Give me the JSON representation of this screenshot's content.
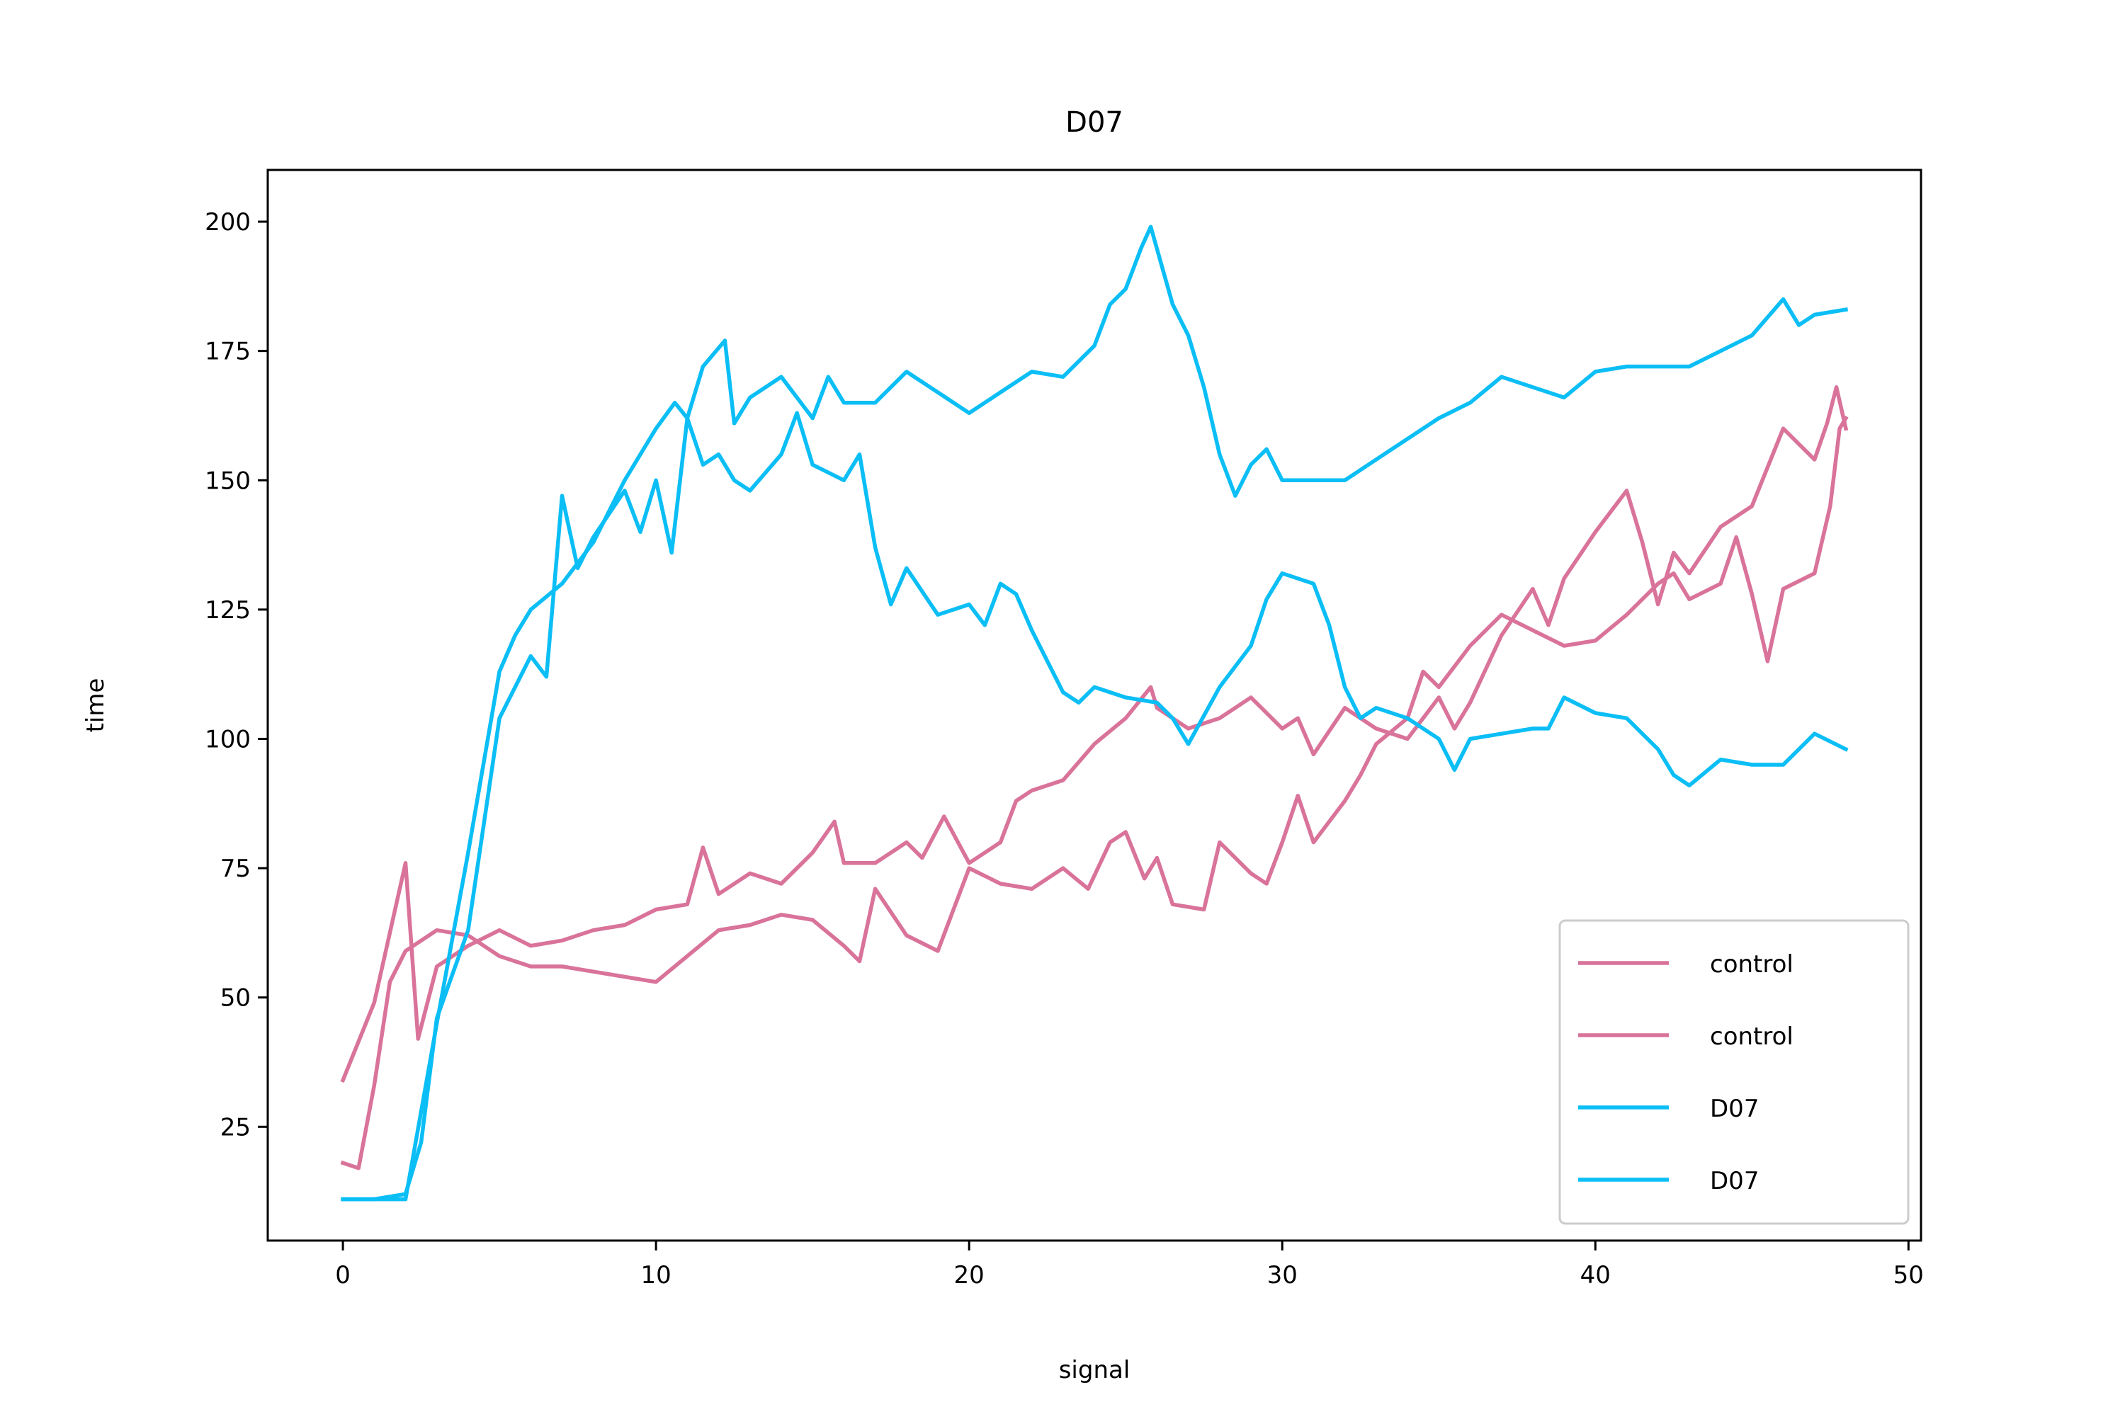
{
  "chart_data": {
    "type": "line",
    "title": "D07",
    "xlabel": "signal",
    "ylabel": "time",
    "xlim": [
      -2.4,
      50.4
    ],
    "ylim": [
      3.0,
      210.0
    ],
    "xticks": [
      0,
      10,
      20,
      30,
      40,
      50
    ],
    "yticks": [
      25,
      50,
      75,
      100,
      125,
      150,
      175,
      200
    ],
    "grid": false,
    "legend_position": "lower right",
    "series": [
      {
        "name": "control",
        "color": "#d9739a",
        "points": [
          [
            0,
            34
          ],
          [
            1,
            49
          ],
          [
            2,
            76
          ],
          [
            2.4,
            42
          ],
          [
            3,
            56
          ],
          [
            4,
            60
          ],
          [
            5,
            63
          ],
          [
            6,
            60
          ],
          [
            7,
            61
          ],
          [
            8,
            63
          ],
          [
            9,
            64
          ],
          [
            10,
            67
          ],
          [
            11,
            68
          ],
          [
            11.5,
            79
          ],
          [
            12,
            70
          ],
          [
            13,
            74
          ],
          [
            14,
            72
          ],
          [
            15,
            78
          ],
          [
            15.7,
            84
          ],
          [
            16,
            76
          ],
          [
            17,
            76
          ],
          [
            18,
            80
          ],
          [
            18.5,
            77
          ],
          [
            19.2,
            85
          ],
          [
            20,
            76
          ],
          [
            21,
            80
          ],
          [
            21.5,
            88
          ],
          [
            22,
            90
          ],
          [
            23,
            92
          ],
          [
            24,
            99
          ],
          [
            25,
            104
          ],
          [
            25.8,
            110
          ],
          [
            26,
            106
          ],
          [
            27,
            102
          ],
          [
            28,
            104
          ],
          [
            29,
            108
          ],
          [
            30,
            102
          ],
          [
            30.5,
            104
          ],
          [
            31,
            97
          ],
          [
            32,
            106
          ],
          [
            33,
            102
          ],
          [
            34,
            100
          ],
          [
            35,
            108
          ],
          [
            35.5,
            102
          ],
          [
            36,
            107
          ],
          [
            37,
            120
          ],
          [
            38,
            129
          ],
          [
            38.5,
            122
          ],
          [
            39,
            131
          ],
          [
            40,
            140
          ],
          [
            41,
            148
          ],
          [
            41.5,
            138
          ],
          [
            42,
            126
          ],
          [
            42.5,
            136
          ],
          [
            43,
            132
          ],
          [
            44,
            141
          ],
          [
            45,
            145
          ],
          [
            46,
            160
          ],
          [
            47,
            154
          ],
          [
            47.4,
            161
          ],
          [
            47.7,
            168
          ],
          [
            48,
            160
          ]
        ]
      },
      {
        "name": "control",
        "color": "#d9739a",
        "points": [
          [
            0,
            18
          ],
          [
            0.5,
            17
          ],
          [
            1,
            33
          ],
          [
            1.5,
            53
          ],
          [
            2,
            59
          ],
          [
            3,
            63
          ],
          [
            4,
            62
          ],
          [
            5,
            58
          ],
          [
            6,
            56
          ],
          [
            7,
            56
          ],
          [
            8,
            55
          ],
          [
            9,
            54
          ],
          [
            10,
            53
          ],
          [
            11,
            58
          ],
          [
            12,
            63
          ],
          [
            13,
            64
          ],
          [
            14,
            66
          ],
          [
            15,
            65
          ],
          [
            16,
            60
          ],
          [
            16.5,
            57
          ],
          [
            17,
            71
          ],
          [
            18,
            62
          ],
          [
            19,
            59
          ],
          [
            20,
            75
          ],
          [
            21,
            72
          ],
          [
            22,
            71
          ],
          [
            23,
            75
          ],
          [
            23.8,
            71
          ],
          [
            24.5,
            80
          ],
          [
            25,
            82
          ],
          [
            25.6,
            73
          ],
          [
            26,
            77
          ],
          [
            26.5,
            68
          ],
          [
            27.5,
            67
          ],
          [
            28,
            80
          ],
          [
            29,
            74
          ],
          [
            29.5,
            72
          ],
          [
            30,
            80
          ],
          [
            30.5,
            89
          ],
          [
            31,
            80
          ],
          [
            32,
            88
          ],
          [
            32.5,
            93
          ],
          [
            33,
            99
          ],
          [
            34,
            104
          ],
          [
            34.5,
            113
          ],
          [
            35,
            110
          ],
          [
            36,
            118
          ],
          [
            37,
            124
          ],
          [
            38,
            121
          ],
          [
            39,
            118
          ],
          [
            40,
            119
          ],
          [
            41,
            124
          ],
          [
            42,
            130
          ],
          [
            42.5,
            132
          ],
          [
            43,
            127
          ],
          [
            44,
            130
          ],
          [
            44.5,
            139
          ],
          [
            45,
            128
          ],
          [
            45.5,
            115
          ],
          [
            46,
            129
          ],
          [
            47,
            132
          ],
          [
            47.5,
            145
          ],
          [
            47.8,
            160
          ],
          [
            48,
            162
          ]
        ]
      },
      {
        "name": "D07",
        "color": "#0bbef5",
        "points": [
          [
            0,
            11
          ],
          [
            1,
            11
          ],
          [
            2,
            12
          ],
          [
            2.5,
            22
          ],
          [
            3,
            46
          ],
          [
            4,
            63
          ],
          [
            5,
            104
          ],
          [
            6,
            116
          ],
          [
            6.5,
            112
          ],
          [
            7,
            147
          ],
          [
            7.5,
            133
          ],
          [
            8,
            139
          ],
          [
            9,
            148
          ],
          [
            9.5,
            140
          ],
          [
            10,
            150
          ],
          [
            10.5,
            136
          ],
          [
            11,
            162
          ],
          [
            11.5,
            153
          ],
          [
            12,
            155
          ],
          [
            12.5,
            150
          ],
          [
            13,
            148
          ],
          [
            14,
            155
          ],
          [
            14.5,
            163
          ],
          [
            15,
            153
          ],
          [
            16,
            150
          ],
          [
            16.5,
            155
          ],
          [
            17,
            137
          ],
          [
            17.5,
            126
          ],
          [
            18,
            133
          ],
          [
            19,
            124
          ],
          [
            20,
            126
          ],
          [
            20.5,
            122
          ],
          [
            21,
            130
          ],
          [
            21.5,
            128
          ],
          [
            22,
            121
          ],
          [
            23,
            109
          ],
          [
            23.5,
            107
          ],
          [
            24,
            110
          ],
          [
            25,
            108
          ],
          [
            26,
            107
          ],
          [
            26.5,
            104
          ],
          [
            27,
            99
          ],
          [
            28,
            110
          ],
          [
            29,
            118
          ],
          [
            29.5,
            127
          ],
          [
            30,
            132
          ],
          [
            31,
            130
          ],
          [
            31.5,
            122
          ],
          [
            32,
            110
          ],
          [
            32.5,
            104
          ],
          [
            33,
            106
          ],
          [
            34,
            104
          ],
          [
            35,
            100
          ],
          [
            35.5,
            94
          ],
          [
            36,
            100
          ],
          [
            37,
            101
          ],
          [
            38,
            102
          ],
          [
            38.5,
            102
          ],
          [
            39,
            108
          ],
          [
            40,
            105
          ],
          [
            41,
            104
          ],
          [
            42,
            98
          ],
          [
            42.5,
            93
          ],
          [
            43,
            91
          ],
          [
            44,
            96
          ],
          [
            45,
            95
          ],
          [
            46,
            95
          ],
          [
            47,
            101
          ],
          [
            48,
            98
          ]
        ]
      },
      {
        "name": "D07",
        "color": "#0bbef5",
        "points": [
          [
            0,
            11
          ],
          [
            1,
            11
          ],
          [
            2,
            11
          ],
          [
            3,
            45
          ],
          [
            4,
            78
          ],
          [
            5,
            113
          ],
          [
            5.5,
            120
          ],
          [
            6,
            125
          ],
          [
            7,
            130
          ],
          [
            7.5,
            134
          ],
          [
            8,
            138
          ],
          [
            9,
            150
          ],
          [
            10,
            160
          ],
          [
            10.6,
            165
          ],
          [
            11,
            162
          ],
          [
            11.5,
            172
          ],
          [
            12.2,
            177
          ],
          [
            12.5,
            161
          ],
          [
            13,
            166
          ],
          [
            13.5,
            168
          ],
          [
            14,
            170
          ],
          [
            15,
            162
          ],
          [
            15.5,
            170
          ],
          [
            16,
            165
          ],
          [
            17,
            165
          ],
          [
            17.5,
            168
          ],
          [
            18,
            171
          ],
          [
            19,
            167
          ],
          [
            20,
            163
          ],
          [
            21,
            167
          ],
          [
            22,
            171
          ],
          [
            23,
            170
          ],
          [
            24,
            176
          ],
          [
            24.5,
            184
          ],
          [
            25,
            187
          ],
          [
            25.5,
            195
          ],
          [
            25.8,
            199
          ],
          [
            26.5,
            184
          ],
          [
            27,
            178
          ],
          [
            27.5,
            168
          ],
          [
            28,
            155
          ],
          [
            28.5,
            147
          ],
          [
            29,
            153
          ],
          [
            29.5,
            156
          ],
          [
            30,
            150
          ],
          [
            31,
            150
          ],
          [
            32,
            150
          ],
          [
            33,
            154
          ],
          [
            34,
            158
          ],
          [
            35,
            162
          ],
          [
            36,
            165
          ],
          [
            37,
            170
          ],
          [
            38,
            168
          ],
          [
            39,
            166
          ],
          [
            40,
            171
          ],
          [
            41,
            172
          ],
          [
            42,
            172
          ],
          [
            43,
            172
          ],
          [
            44,
            175
          ],
          [
            45,
            178
          ],
          [
            46,
            185
          ],
          [
            46.5,
            180
          ],
          [
            47,
            182
          ],
          [
            48,
            183
          ]
        ]
      }
    ]
  }
}
